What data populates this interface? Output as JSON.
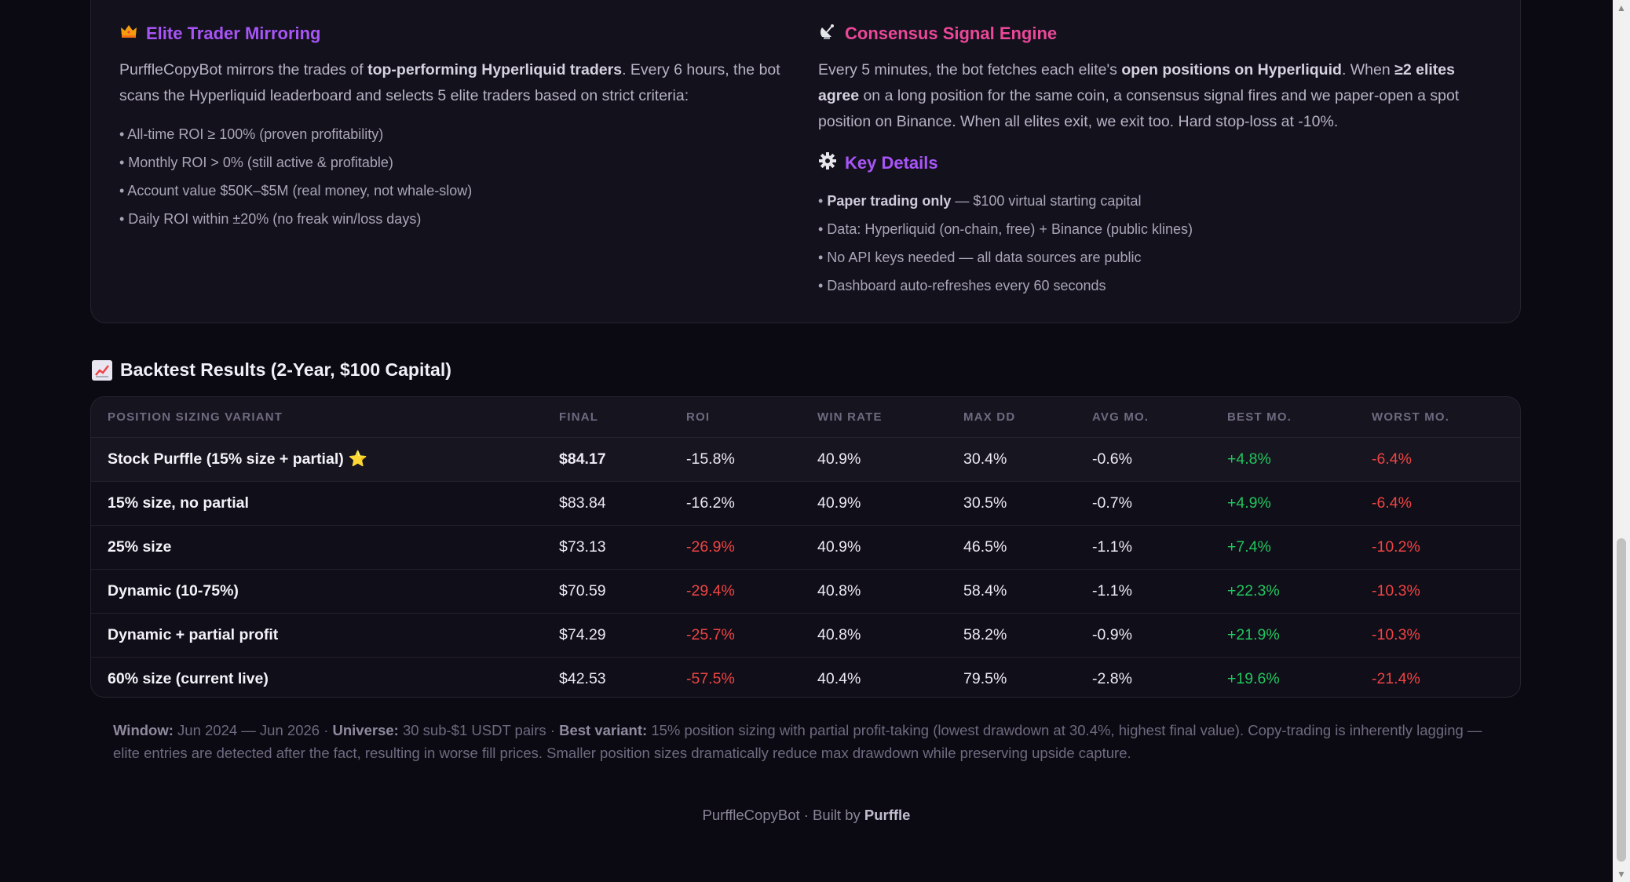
{
  "info": {
    "elite": {
      "icon": "crown-icon",
      "title": "Elite Trader Mirroring",
      "p_a": "PurffleCopyBot mirrors the trades of ",
      "p_b": "top-performing Hyperliquid traders",
      "p_c": ". Every 6 hours, the bot scans the Hyperliquid leaderboard and selects 5 elite traders based on strict criteria:",
      "bullets": [
        "• All-time ROI ≥ 100% (proven profitability)",
        "• Monthly ROI > 0% (still active & profitable)",
        "• Account value $50K–$5M (real money, not whale-slow)",
        "• Daily ROI within ±20% (no freak win/loss days)"
      ]
    },
    "consensus": {
      "icon": "satellite-icon",
      "title": "Consensus Signal Engine",
      "p_a": "Every 5 minutes, the bot fetches each elite's ",
      "p_b": "open positions on Hyperliquid",
      "p_c": ". When ",
      "p_d": "≥2 elites agree",
      "p_e": " on a long position for the same coin, a consensus signal fires and we paper-open a spot position on Binance. When all elites exit, we exit too. Hard stop-loss at -10%."
    },
    "details": {
      "icon": "gear-icon",
      "title": "Key Details",
      "b1_prefix": "• ",
      "b1_bold": "Paper trading only",
      "b1_rest": " — $100 virtual starting capital",
      "bullets": [
        "• Data: Hyperliquid (on-chain, free) + Binance (public klines)",
        "• No API keys needed — all data sources are public",
        "• Dashboard auto-refreshes every 60 seconds"
      ]
    }
  },
  "backtest": {
    "icon": "chart-up-icon",
    "title": "Backtest Results (2-Year, $100 Capital)",
    "columns": [
      "POSITION SIZING VARIANT",
      "FINAL",
      "ROI",
      "WIN RATE",
      "MAX DD",
      "AVG MO.",
      "BEST MO.",
      "WORST MO."
    ],
    "rows": [
      {
        "name": "Stock Purffle (15% size + partial)",
        "star": "⭐",
        "final": "$84.17",
        "roi": "-15.8%",
        "win": "40.9%",
        "maxdd": "30.4%",
        "avg": "-0.6%",
        "best": "+4.8%",
        "worst": "-6.4%"
      },
      {
        "name": "15% size, no partial",
        "final": "$83.84",
        "roi": "-16.2%",
        "win": "40.9%",
        "maxdd": "30.5%",
        "avg": "-0.7%",
        "best": "+4.9%",
        "worst": "-6.4%"
      },
      {
        "name": "25% size",
        "final": "$73.13",
        "roi": "-26.9%",
        "win": "40.9%",
        "maxdd": "46.5%",
        "avg": "-1.1%",
        "best": "+7.4%",
        "worst": "-10.2%"
      },
      {
        "name": "Dynamic (10-75%)",
        "final": "$70.59",
        "roi": "-29.4%",
        "win": "40.8%",
        "maxdd": "58.4%",
        "avg": "-1.1%",
        "best": "+22.3%",
        "worst": "-10.3%"
      },
      {
        "name": "Dynamic + partial profit",
        "final": "$74.29",
        "roi": "-25.7%",
        "win": "40.8%",
        "maxdd": "58.2%",
        "avg": "-0.9%",
        "best": "+21.9%",
        "worst": "-10.3%"
      },
      {
        "name": "60% size (current live)",
        "final": "$42.53",
        "roi": "-57.5%",
        "win": "40.4%",
        "maxdd": "79.5%",
        "avg": "-2.8%",
        "best": "+19.6%",
        "worst": "-21.4%"
      }
    ],
    "footnote": {
      "window_label": "Window:",
      "window_value": " Jun 2024 — Jun 2026 · ",
      "universe_label": "Universe:",
      "universe_value": " 30 sub-$1 USDT pairs · ",
      "best_label": "Best variant:",
      "best_value": " 15% position sizing with partial profit-taking (lowest drawdown at 30.4%, highest final value). Copy-trading is inherently lagging — elite entries are detected after the fact, resulting in worse fill prices. Smaller position sizes dramatically reduce max drawdown while preserving upside capture."
    }
  },
  "footer": {
    "text": "PurffleCopyBot · Built by ",
    "brand": "Purffle"
  },
  "colors": {
    "accent_purple": "#a855f7",
    "accent_pink": "#ec4899",
    "positive": "#22c55e",
    "negative": "#ef4444"
  }
}
